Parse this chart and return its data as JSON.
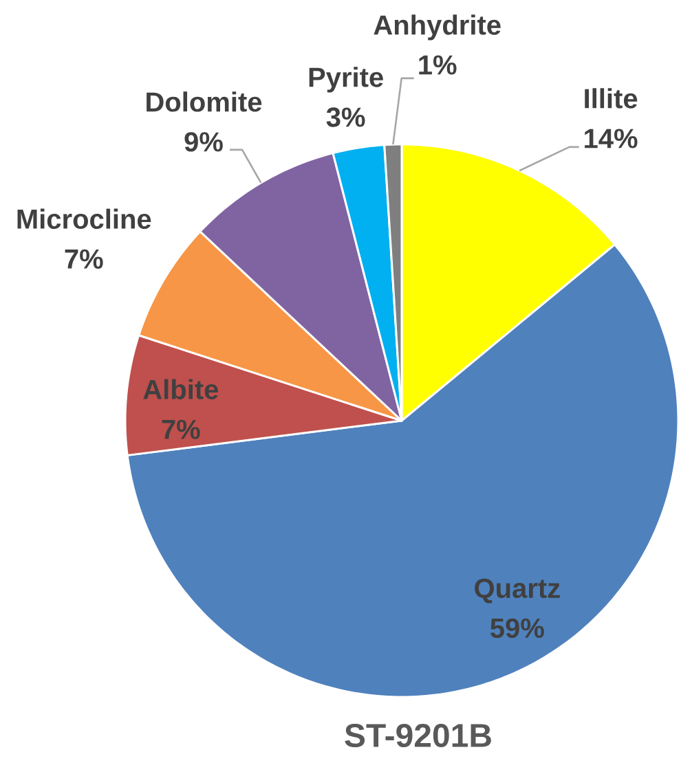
{
  "chart_data": {
    "type": "pie",
    "title": "ST-9201B",
    "categories": [
      "Illite",
      "Quartz",
      "Albite",
      "Microcline",
      "Dolomite",
      "Pyrite",
      "Anhydrite"
    ],
    "values": [
      14,
      59,
      7,
      7,
      9,
      3,
      1
    ],
    "value_labels": [
      "14%",
      "59%",
      "7%",
      "7%",
      "9%",
      "3%",
      "1%"
    ],
    "colors": [
      "#ffff00",
      "#4f81bd",
      "#c0504d",
      "#f79646",
      "#8064a2",
      "#00b0f0",
      "#7f7f7f"
    ]
  }
}
